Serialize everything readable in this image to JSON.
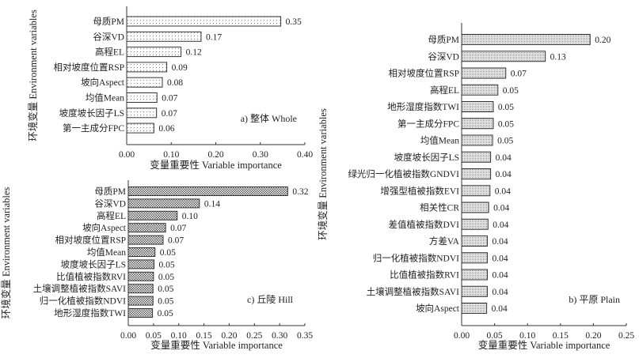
{
  "chart_data": [
    {
      "type": "bar",
      "orientation": "horizontal",
      "panel": "a) 整体 Whole",
      "xlabel": "变量重要性 Variable importance",
      "ylabel": "环境变量 Environment variables",
      "xlim": [
        0,
        0.4
      ],
      "xticks": [
        "0.00",
        "0.10",
        "0.20",
        "0.30",
        "0.40"
      ],
      "categories": [
        "母质PM",
        "谷深VD",
        "高程EL",
        "相对坡度位置RSP",
        "坡向Aspect",
        "均值Mean",
        "坡度坡长因子LS",
        "第一主成分FPC"
      ],
      "values": [
        0.346,
        0.167,
        0.122,
        0.09,
        0.08,
        0.068,
        0.067,
        0.061
      ],
      "data_labels": [
        "0.35",
        "0.17",
        "0.12",
        "0.09",
        "0.08",
        "0.07",
        "0.07",
        "0.06"
      ],
      "grid": false
    },
    {
      "type": "bar",
      "orientation": "horizontal",
      "panel": "b) 平原 Plain",
      "xlabel": "变量重要性 Variable importance",
      "ylabel": "环境变量 Environment variables",
      "xlim": [
        0,
        0.25
      ],
      "xticks": [
        "0.00",
        "0.05",
        "0.10",
        "0.15",
        "0.20",
        "0.25"
      ],
      "categories": [
        "母质PM",
        "谷深VD",
        "相对坡度位置RSP",
        "高程EL",
        "地形湿度指数TWI",
        "第一主成分FPC",
        "均值Mean",
        "坡度坡长因子LS",
        "绿光归一化植被指数GNDVI",
        "增强型植被指数EVI",
        "相关性CR",
        "差值植被指数DVI",
        "方差VA",
        "归一化植被指数NDVI",
        "比值植被指数RVI",
        "土壤调整植被指数SAVI",
        "坡向Aspect"
      ],
      "values": [
        0.195,
        0.127,
        0.067,
        0.055,
        0.048,
        0.048,
        0.047,
        0.044,
        0.044,
        0.043,
        0.041,
        0.04,
        0.039,
        0.039,
        0.039,
        0.039,
        0.038
      ],
      "data_labels": [
        "0.20",
        "0.13",
        "0.07",
        "0.05",
        "0.05",
        "0.05",
        "0.05",
        "0.04",
        "0.04",
        "0.04",
        "0.04",
        "0.04",
        "0.04",
        "0.04",
        "0.04",
        "0.04",
        "0.04"
      ],
      "grid": false
    },
    {
      "type": "bar",
      "orientation": "horizontal",
      "panel": "c) 丘陵 Hill",
      "xlabel": "变量重要性 Variable importance",
      "ylabel": "环境变量 Environment variables",
      "xlim": [
        0,
        0.35
      ],
      "xticks": [
        "0.00",
        "0.05",
        "0.10",
        "0.15",
        "0.20",
        "0.25",
        "0.30",
        "0.35"
      ],
      "categories": [
        "母质PM",
        "谷深VD",
        "高程EL",
        "坡向Aspect",
        "相对坡度位置RSP",
        "均值Mean",
        "坡度坡长因子LS",
        "比值植被指数RVI",
        "土壤调整植被指数SAVI",
        "归一化植被指数NDVI",
        "地形湿度指数TWI"
      ],
      "values": [
        0.316,
        0.141,
        0.097,
        0.074,
        0.069,
        0.053,
        0.051,
        0.05,
        0.049,
        0.049,
        0.048
      ],
      "data_labels": [
        "0.32",
        "0.14",
        "0.10",
        "0.07",
        "0.07",
        "0.05",
        "0.05",
        "0.05",
        "0.05",
        "0.05",
        "0.05"
      ],
      "grid": false
    }
  ]
}
